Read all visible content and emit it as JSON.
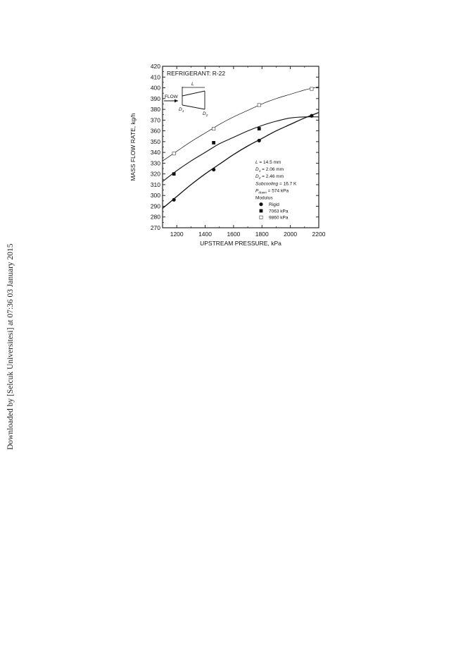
{
  "side_note": "Downloaded by [Selcuk Universitesi] at 07:36 03 January 2015",
  "chart_data": {
    "type": "scatter",
    "title": "REFRIGERANT: R-22",
    "xlabel": "UPSTREAM PRESSURE, kPa",
    "ylabel": "MASS FLOW RATE, kg/h",
    "xlim": [
      1100,
      2200
    ],
    "ylim": [
      270,
      420
    ],
    "x_ticks": [
      1200,
      1400,
      1600,
      1800,
      2000,
      2200
    ],
    "y_ticks": [
      270,
      280,
      290,
      300,
      310,
      320,
      330,
      340,
      350,
      360,
      370,
      380,
      390,
      400,
      410,
      420
    ],
    "grid": false,
    "legend_title": "Modulus",
    "series": [
      {
        "name": "Rigid",
        "marker": "filled-circle",
        "points": [
          [
            1180,
            296
          ],
          [
            1460,
            324
          ],
          [
            1780,
            351
          ],
          [
            2150,
            374
          ]
        ],
        "fit_curve": [
          [
            1100,
            288
          ],
          [
            1200,
            299
          ],
          [
            1300,
            310
          ],
          [
            1400,
            320
          ],
          [
            1500,
            329
          ],
          [
            1600,
            338
          ],
          [
            1700,
            346
          ],
          [
            1800,
            353
          ],
          [
            1900,
            360
          ],
          [
            2000,
            366
          ],
          [
            2100,
            372
          ],
          [
            2200,
            377
          ]
        ]
      },
      {
        "name": "7063 kPa",
        "marker": "filled-square",
        "points": [
          [
            1180,
            320
          ],
          [
            1460,
            349
          ],
          [
            1780,
            362
          ]
        ],
        "fit_curve": [
          [
            1100,
            313
          ],
          [
            1200,
            323
          ],
          [
            1300,
            332
          ],
          [
            1400,
            340
          ],
          [
            1500,
            348
          ],
          [
            1600,
            354
          ],
          [
            1700,
            360
          ],
          [
            1800,
            365
          ],
          [
            1900,
            369
          ],
          [
            2000,
            372
          ],
          [
            2100,
            373
          ],
          [
            2200,
            373
          ]
        ]
      },
      {
        "name": "9860 kPa",
        "marker": "open-square",
        "points": [
          [
            1180,
            339
          ],
          [
            1460,
            362
          ],
          [
            1780,
            384
          ],
          [
            2150,
            399
          ]
        ],
        "fit_curve": [
          [
            1100,
            332
          ],
          [
            1200,
            341
          ],
          [
            1300,
            350
          ],
          [
            1400,
            358
          ],
          [
            1500,
            366
          ],
          [
            1600,
            373
          ],
          [
            1700,
            379
          ],
          [
            1800,
            385
          ],
          [
            1900,
            390
          ],
          [
            2000,
            394
          ],
          [
            2100,
            398
          ],
          [
            2200,
            401
          ]
        ]
      }
    ],
    "annotations": [
      {
        "lhs": "L",
        "sub": "",
        "rhs": " = 14.5 mm"
      },
      {
        "lhs": "D",
        "sub": "1",
        "rhs": " = 2.06 mm"
      },
      {
        "lhs": "D",
        "sub": "2",
        "rhs": " = 2.46 mm"
      },
      {
        "lhs": "Subcooling",
        "sub": "",
        "rhs": " = 16.7 K"
      },
      {
        "lhs": "P",
        "sub": "down",
        "rhs": " = 574 kPa"
      }
    ],
    "inset": {
      "flow_label": "FLOW",
      "length_label": "L",
      "d1_main": "D",
      "d1_sub": "1",
      "d2_main": "D",
      "d2_sub": "2"
    }
  }
}
